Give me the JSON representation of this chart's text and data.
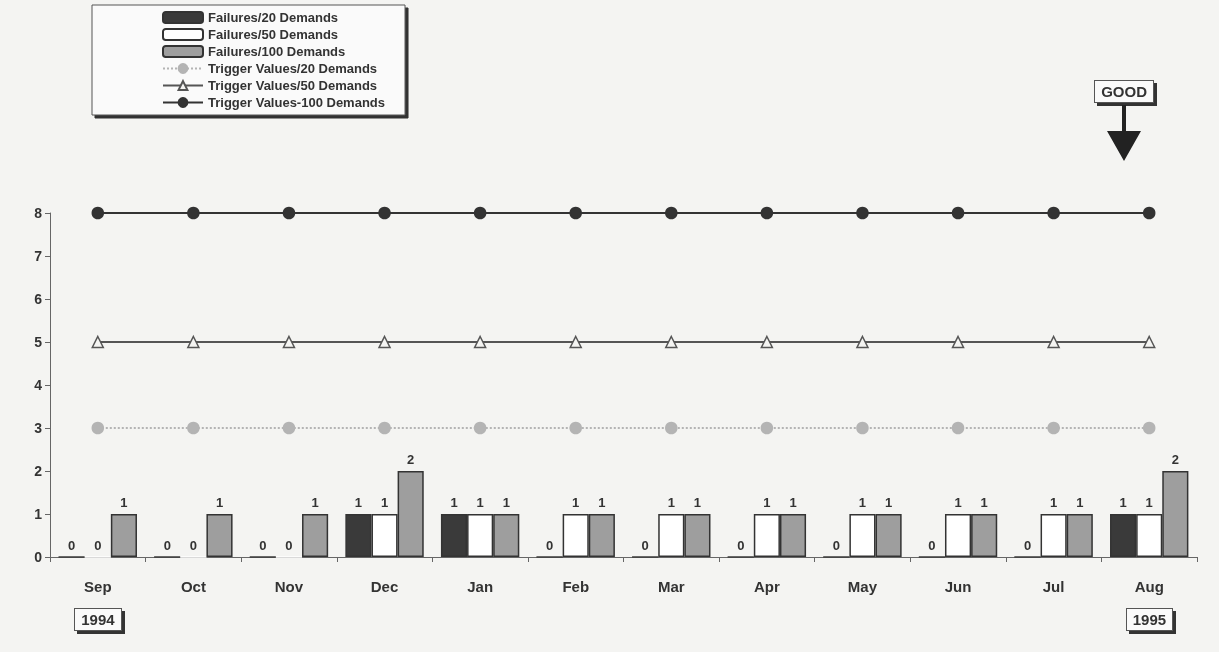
{
  "chart_data": {
    "type": "bar",
    "categories": [
      "Sep",
      "Oct",
      "Nov",
      "Dec",
      "Jan",
      "Feb",
      "Mar",
      "Apr",
      "May",
      "Jun",
      "Jul",
      "Aug"
    ],
    "series": [
      {
        "name": "Failures/20 Demands",
        "color": "#3a3a3a",
        "values": [
          0,
          0,
          0,
          1,
          1,
          0,
          0,
          0,
          0,
          0,
          0,
          1
        ],
        "value_labels": [
          "0",
          "0",
          "0",
          "1",
          "1",
          "0",
          "0",
          "0",
          "0",
          "0",
          "0",
          "1"
        ]
      },
      {
        "name": "Failures/50 Demands",
        "color": "#ffffff",
        "values": [
          0,
          0,
          0,
          1,
          1,
          1,
          1,
          1,
          1,
          1,
          1,
          1
        ],
        "value_labels": [
          "0",
          "0",
          "0",
          "1",
          "1",
          "1",
          "1",
          "1",
          "1",
          "1",
          "1",
          "1"
        ]
      },
      {
        "name": "Failures/100 Demands",
        "color": "#9e9e9e",
        "values": [
          1,
          1,
          1,
          2,
          1,
          1,
          1,
          1,
          1,
          1,
          1,
          2
        ],
        "value_labels": [
          "1",
          "1",
          "1",
          "2",
          "1",
          "1",
          "1",
          "1",
          "1",
          "1",
          "1",
          "2"
        ]
      },
      {
        "name": "Trigger Values/20 Demands",
        "type": "line",
        "color": "#b4b4b4",
        "marker": "circle",
        "line_style": "dotted",
        "values": [
          3,
          3,
          3,
          3,
          3,
          3,
          3,
          3,
          3,
          3,
          3,
          3
        ]
      },
      {
        "name": "Trigger Values/50 Demands",
        "type": "line",
        "color": "#555555",
        "marker": "triangle",
        "line_style": "solid",
        "values": [
          5,
          5,
          5,
          5,
          5,
          5,
          5,
          5,
          5,
          5,
          5,
          5
        ]
      },
      {
        "name": "Trigger Values-100 Demands",
        "type": "line",
        "color": "#333333",
        "marker": "circle",
        "line_style": "solid",
        "values": [
          8,
          8,
          8,
          8,
          8,
          8,
          8,
          8,
          8,
          8,
          8,
          8
        ]
      }
    ],
    "ylim": [
      0,
      8
    ],
    "yticks": [
      0,
      1,
      2,
      3,
      4,
      5,
      6,
      7,
      8
    ],
    "grid": false,
    "legend": "top left",
    "annotations": [
      "GOOD",
      "1994",
      "1995"
    ]
  }
}
